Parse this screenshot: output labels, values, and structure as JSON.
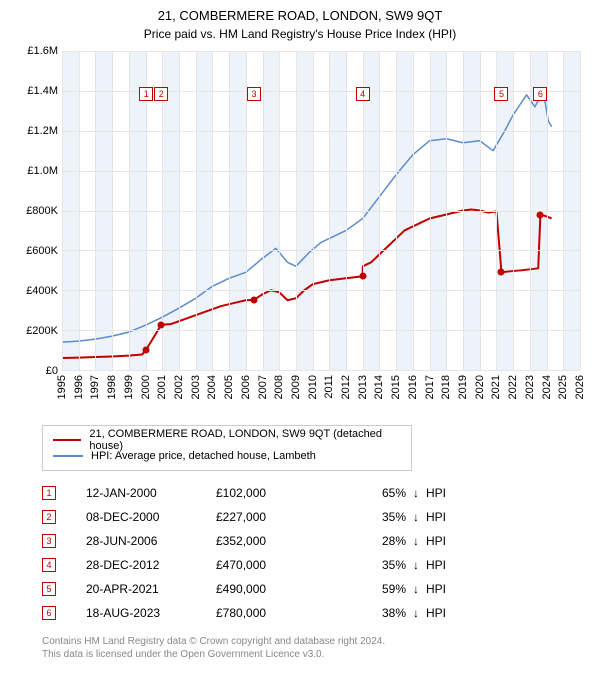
{
  "title": "21, COMBERMERE ROAD, LONDON, SW9 9QT",
  "subtitle": "Price paid vs. HM Land Registry's House Price Index (HPI)",
  "chart": {
    "type": "line",
    "background_color": "#ffffff",
    "grid_color": "#e5e5e5",
    "band_color": "#eef3fa",
    "y": {
      "min": 0,
      "max": 1600000,
      "step": 200000,
      "labels": [
        "£0",
        "£200K",
        "£400K",
        "£600K",
        "£800K",
        "£1.0M",
        "£1.2M",
        "£1.4M",
        "£1.6M"
      ]
    },
    "x": {
      "min": 1995,
      "max": 2026,
      "step": 1,
      "labels": [
        "1995",
        "1996",
        "1997",
        "1998",
        "1999",
        "2000",
        "2001",
        "2002",
        "2003",
        "2004",
        "2005",
        "2006",
        "2007",
        "2008",
        "2009",
        "2010",
        "2011",
        "2012",
        "2013",
        "2014",
        "2015",
        "2016",
        "2017",
        "2018",
        "2019",
        "2020",
        "2021",
        "2022",
        "2023",
        "2024",
        "2025",
        "2026"
      ]
    },
    "band_years": [
      [
        1995,
        1996
      ],
      [
        1997,
        1998
      ],
      [
        1999,
        2000
      ],
      [
        2001,
        2002
      ],
      [
        2003,
        2004
      ],
      [
        2005,
        2006
      ],
      [
        2007,
        2008
      ],
      [
        2009,
        2010
      ],
      [
        2011,
        2012
      ],
      [
        2013,
        2014
      ],
      [
        2015,
        2016
      ],
      [
        2017,
        2018
      ],
      [
        2019,
        2020
      ],
      [
        2021,
        2022
      ],
      [
        2023,
        2024
      ],
      [
        2025,
        2026
      ]
    ],
    "series": [
      {
        "name": "21, COMBERMERE ROAD, LONDON, SW9 9QT (detached house)",
        "color": "#c00000",
        "line_width": 2,
        "points": [
          [
            1995.0,
            60000
          ],
          [
            1996.0,
            62000
          ],
          [
            1997.0,
            65000
          ],
          [
            1998.0,
            68000
          ],
          [
            1999.0,
            72000
          ],
          [
            1999.8,
            78000
          ],
          [
            2000.04,
            102000
          ],
          [
            2000.94,
            227000
          ],
          [
            2001.5,
            230000
          ],
          [
            2002.0,
            245000
          ],
          [
            2002.5,
            260000
          ],
          [
            2003.0,
            275000
          ],
          [
            2003.5,
            290000
          ],
          [
            2004.0,
            305000
          ],
          [
            2004.5,
            320000
          ],
          [
            2005.0,
            330000
          ],
          [
            2005.5,
            340000
          ],
          [
            2006.0,
            350000
          ],
          [
            2006.49,
            352000
          ],
          [
            2007.0,
            380000
          ],
          [
            2007.5,
            400000
          ],
          [
            2008.0,
            390000
          ],
          [
            2008.5,
            350000
          ],
          [
            2009.0,
            360000
          ],
          [
            2009.5,
            400000
          ],
          [
            2010.0,
            430000
          ],
          [
            2010.5,
            440000
          ],
          [
            2011.0,
            450000
          ],
          [
            2011.5,
            455000
          ],
          [
            2012.0,
            460000
          ],
          [
            2012.5,
            465000
          ],
          [
            2012.99,
            470000
          ],
          [
            2013.0,
            520000
          ],
          [
            2013.5,
            540000
          ],
          [
            2014.0,
            580000
          ],
          [
            2014.5,
            620000
          ],
          [
            2015.0,
            660000
          ],
          [
            2015.5,
            700000
          ],
          [
            2016.0,
            720000
          ],
          [
            2016.5,
            740000
          ],
          [
            2017.0,
            760000
          ],
          [
            2017.5,
            770000
          ],
          [
            2018.0,
            780000
          ],
          [
            2018.5,
            790000
          ],
          [
            2019.0,
            800000
          ],
          [
            2019.5,
            805000
          ],
          [
            2020.0,
            800000
          ],
          [
            2020.5,
            790000
          ],
          [
            2021.0,
            795000
          ],
          [
            2021.3,
            490000
          ],
          [
            2021.8,
            495000
          ],
          [
            2022.5,
            500000
          ],
          [
            2023.0,
            505000
          ],
          [
            2023.5,
            510000
          ],
          [
            2023.63,
            780000
          ],
          [
            2024.0,
            770000
          ],
          [
            2024.3,
            760000
          ]
        ]
      },
      {
        "name": "HPI: Average price, detached house, Lambeth",
        "color": "#5b8ccc",
        "line_width": 1.5,
        "points": [
          [
            1995.0,
            140000
          ],
          [
            1996.0,
            145000
          ],
          [
            1997.0,
            155000
          ],
          [
            1998.0,
            170000
          ],
          [
            1999.0,
            190000
          ],
          [
            2000.0,
            225000
          ],
          [
            2001.0,
            265000
          ],
          [
            2002.0,
            310000
          ],
          [
            2003.0,
            360000
          ],
          [
            2004.0,
            420000
          ],
          [
            2005.0,
            460000
          ],
          [
            2006.0,
            490000
          ],
          [
            2007.0,
            560000
          ],
          [
            2007.8,
            610000
          ],
          [
            2008.5,
            540000
          ],
          [
            2009.0,
            520000
          ],
          [
            2009.8,
            590000
          ],
          [
            2010.5,
            640000
          ],
          [
            2011.0,
            660000
          ],
          [
            2012.0,
            700000
          ],
          [
            2013.0,
            760000
          ],
          [
            2014.0,
            870000
          ],
          [
            2015.0,
            980000
          ],
          [
            2016.0,
            1080000
          ],
          [
            2017.0,
            1150000
          ],
          [
            2018.0,
            1160000
          ],
          [
            2019.0,
            1140000
          ],
          [
            2020.0,
            1150000
          ],
          [
            2020.8,
            1100000
          ],
          [
            2021.5,
            1200000
          ],
          [
            2022.0,
            1280000
          ],
          [
            2022.8,
            1380000
          ],
          [
            2023.3,
            1320000
          ],
          [
            2023.8,
            1400000
          ],
          [
            2024.1,
            1250000
          ],
          [
            2024.3,
            1220000
          ]
        ]
      }
    ],
    "sale_markers": [
      {
        "n": "1",
        "year": 2000.04,
        "price": 102000
      },
      {
        "n": "2",
        "year": 2000.94,
        "price": 227000
      },
      {
        "n": "3",
        "year": 2006.49,
        "price": 352000
      },
      {
        "n": "4",
        "year": 2012.99,
        "price": 470000
      },
      {
        "n": "5",
        "year": 2021.3,
        "price": 490000
      },
      {
        "n": "6",
        "year": 2023.63,
        "price": 780000
      }
    ],
    "marker_top_y": 1420000,
    "marker_color": "#c00000"
  },
  "legend": {
    "items": [
      {
        "color": "#c00000",
        "label": "21, COMBERMERE ROAD, LONDON, SW9 9QT (detached house)"
      },
      {
        "color": "#5b8ccc",
        "label": "HPI: Average price, detached house, Lambeth"
      }
    ]
  },
  "sales_table": {
    "rows": [
      {
        "n": "1",
        "date": "12-JAN-2000",
        "price": "£102,000",
        "pct": "65%",
        "dir": "↓",
        "suffix": "HPI"
      },
      {
        "n": "2",
        "date": "08-DEC-2000",
        "price": "£227,000",
        "pct": "35%",
        "dir": "↓",
        "suffix": "HPI"
      },
      {
        "n": "3",
        "date": "28-JUN-2006",
        "price": "£352,000",
        "pct": "28%",
        "dir": "↓",
        "suffix": "HPI"
      },
      {
        "n": "4",
        "date": "28-DEC-2012",
        "price": "£470,000",
        "pct": "35%",
        "dir": "↓",
        "suffix": "HPI"
      },
      {
        "n": "5",
        "date": "20-APR-2021",
        "price": "£490,000",
        "pct": "59%",
        "dir": "↓",
        "suffix": "HPI"
      },
      {
        "n": "6",
        "date": "18-AUG-2023",
        "price": "£780,000",
        "pct": "38%",
        "dir": "↓",
        "suffix": "HPI"
      }
    ]
  },
  "footer": {
    "line1": "Contains HM Land Registry data © Crown copyright and database right 2024.",
    "line2": "This data is licensed under the Open Government Licence v3.0."
  }
}
